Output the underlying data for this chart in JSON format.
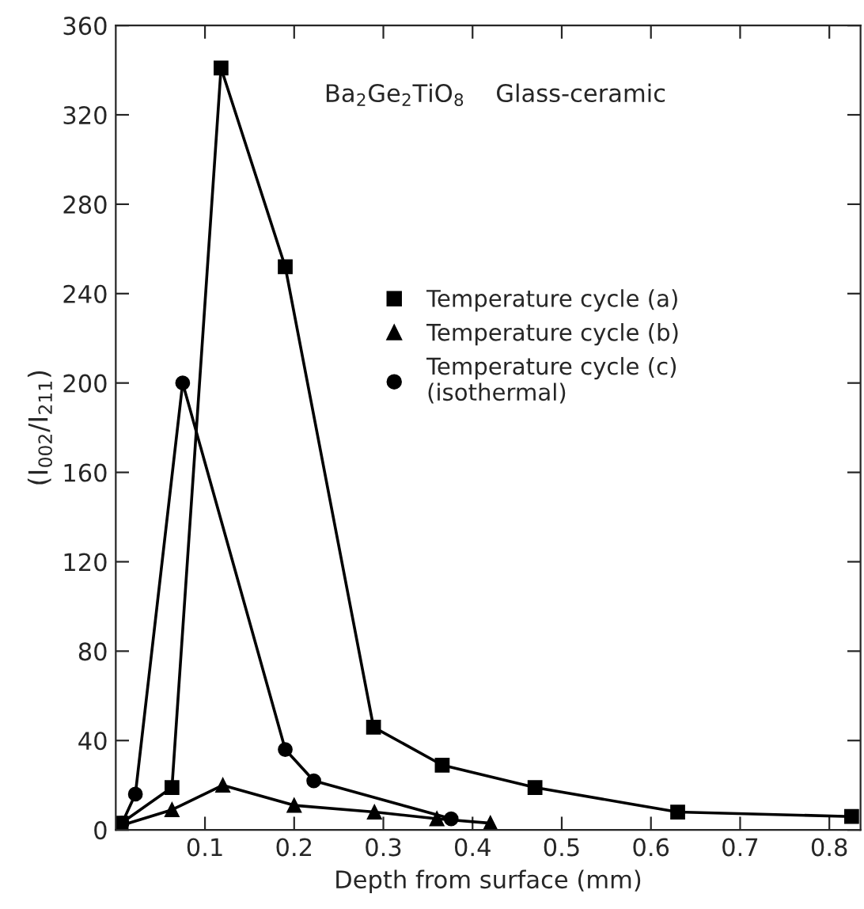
{
  "chart_data": {
    "type": "line",
    "xlabel": "Depth from surface (mm)",
    "ylabel": "(I$_{002}$/I$_{211}$)",
    "annotations": [
      "Ba$_{2}$Ge$_{2}$TiO$_{8}$    Glass-ceramic"
    ],
    "xlim": [
      0,
      0.835
    ],
    "xticks": [
      0.1,
      0.2,
      0.3,
      0.4,
      0.5,
      0.6,
      0.7,
      0.8
    ],
    "ylim": [
      0,
      360
    ],
    "yticks": [
      0,
      40,
      80,
      120,
      160,
      200,
      240,
      280,
      320,
      360
    ],
    "grid": false,
    "legend": "center",
    "series": [
      {
        "name": "Temperature cycle (a)",
        "color": "#000000",
        "marker": "square",
        "x": [
          0.006,
          0.063,
          0.118,
          0.19,
          0.289,
          0.366,
          0.47,
          0.63,
          0.825
        ],
        "values": [
          3,
          19,
          341,
          252,
          46,
          29,
          19,
          8,
          6
        ]
      },
      {
        "name": "Temperature cycle (b)",
        "color": "#000000",
        "marker": "triangle",
        "x": [
          0.006,
          0.063,
          0.12,
          0.2,
          0.29,
          0.36,
          0.42
        ],
        "values": [
          2,
          9,
          20,
          11,
          8,
          5,
          3
        ]
      },
      {
        "name": "Temperature cycle (c)\n(isothermal)",
        "color": "#000000",
        "marker": "circle",
        "x": [
          0.007,
          0.022,
          0.075,
          0.19,
          0.222,
          0.376
        ],
        "values": [
          3,
          16,
          200,
          36,
          22,
          5
        ]
      }
    ]
  }
}
